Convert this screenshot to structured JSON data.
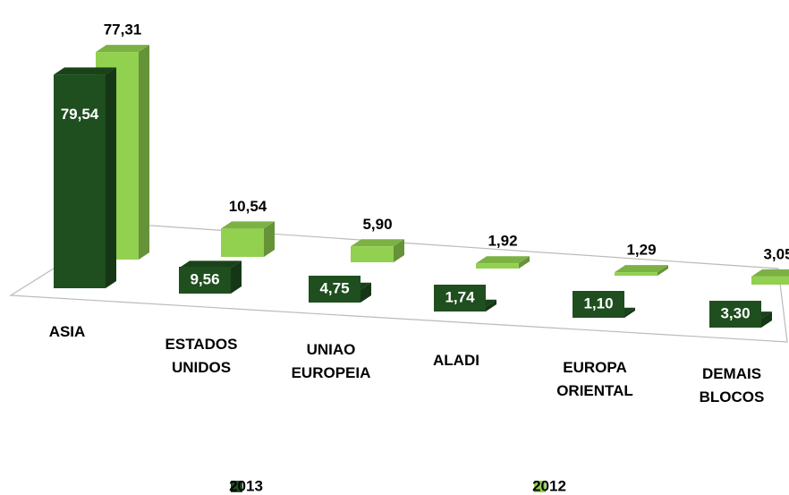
{
  "chart_data": {
    "type": "bar3d",
    "categories": [
      "ASIA",
      "ESTADOS UNIDOS",
      "UNIAO EUROPEIA",
      "ALADI",
      "EUROPA ORIENTAL",
      "DEMAIS BLOCOS"
    ],
    "series": [
      {
        "name": "2013",
        "color": "#1f4e1f",
        "values": [
          79.54,
          9.56,
          4.75,
          1.74,
          1.1,
          3.3
        ],
        "value_labels": [
          "79,54",
          "9,56",
          "4,75",
          "1,74",
          "1,10",
          "3,30"
        ]
      },
      {
        "name": "2012",
        "color": "#92d050",
        "values": [
          77.31,
          10.54,
          5.9,
          1.92,
          1.29,
          3.05
        ],
        "value_labels": [
          "77,31",
          "10,54",
          "5,90",
          "1,92",
          "1,29",
          "3,05"
        ]
      }
    ],
    "legend": "bottom"
  }
}
